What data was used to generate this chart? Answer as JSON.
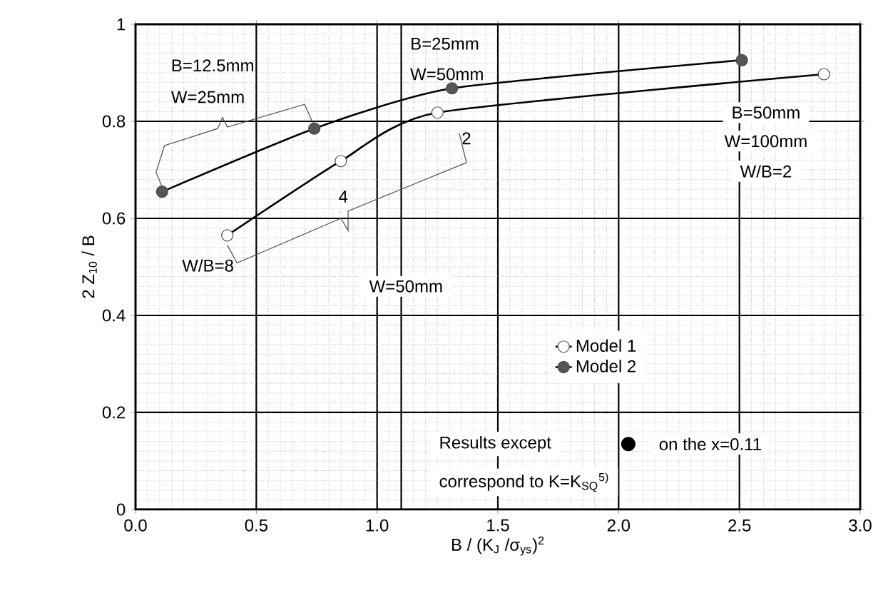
{
  "chart_data": {
    "type": "line",
    "xlabel": "B / (K$_{J}$ /σ$_{ys}$)$^{2}$",
    "ylabel": "2 Z$_{10}$ / B",
    "series": [
      {
        "name": "Model 1",
        "color": "#ffffff",
        "x": [
          0.38,
          0.85,
          1.25,
          2.85
        ],
        "values": [
          0.565,
          0.718,
          0.818,
          0.897
        ]
      },
      {
        "name": "Model 2",
        "color": "#555555",
        "x": [
          0.11,
          0.74,
          1.31,
          2.51
        ],
        "values": [
          0.655,
          0.785,
          0.868,
          0.926
        ]
      }
    ],
    "xlim": [
      0,
      3
    ],
    "ylim": [
      0,
      1
    ],
    "xticks": [
      {
        "value": 0,
        "label": "0.0"
      },
      0.5,
      {
        "value": 1,
        "label": "1.0"
      },
      1.5,
      {
        "value": 2,
        "label": "2.0"
      },
      2.5,
      {
        "value": 3,
        "label": "3.0"
      }
    ],
    "yticks": [
      0,
      0.2,
      0.4,
      0.6,
      0.8,
      1
    ],
    "ref_lines": [
      {
        "axis": "x",
        "value": 1.1
      }
    ],
    "annotations": [
      "B=12.5mm",
      "W=25mm",
      "B=25mm",
      "W=50mm",
      {
        "text": "2",
        "x": 1.25,
        "y": 0.818
      },
      {
        "text": "4",
        "x": 0.85,
        "y": 0.718
      },
      "W/B=8",
      "W=50mm",
      "B=50mm",
      "W=100mm",
      "W/B=2",
      "Results except",
      "on the  x=0.11",
      "correspond to K=K$_{SQ}$$^{5)}$"
    ],
    "grid": true,
    "legend": "bottom right",
    "marker": "circle",
    "line_style": "solid"
  }
}
